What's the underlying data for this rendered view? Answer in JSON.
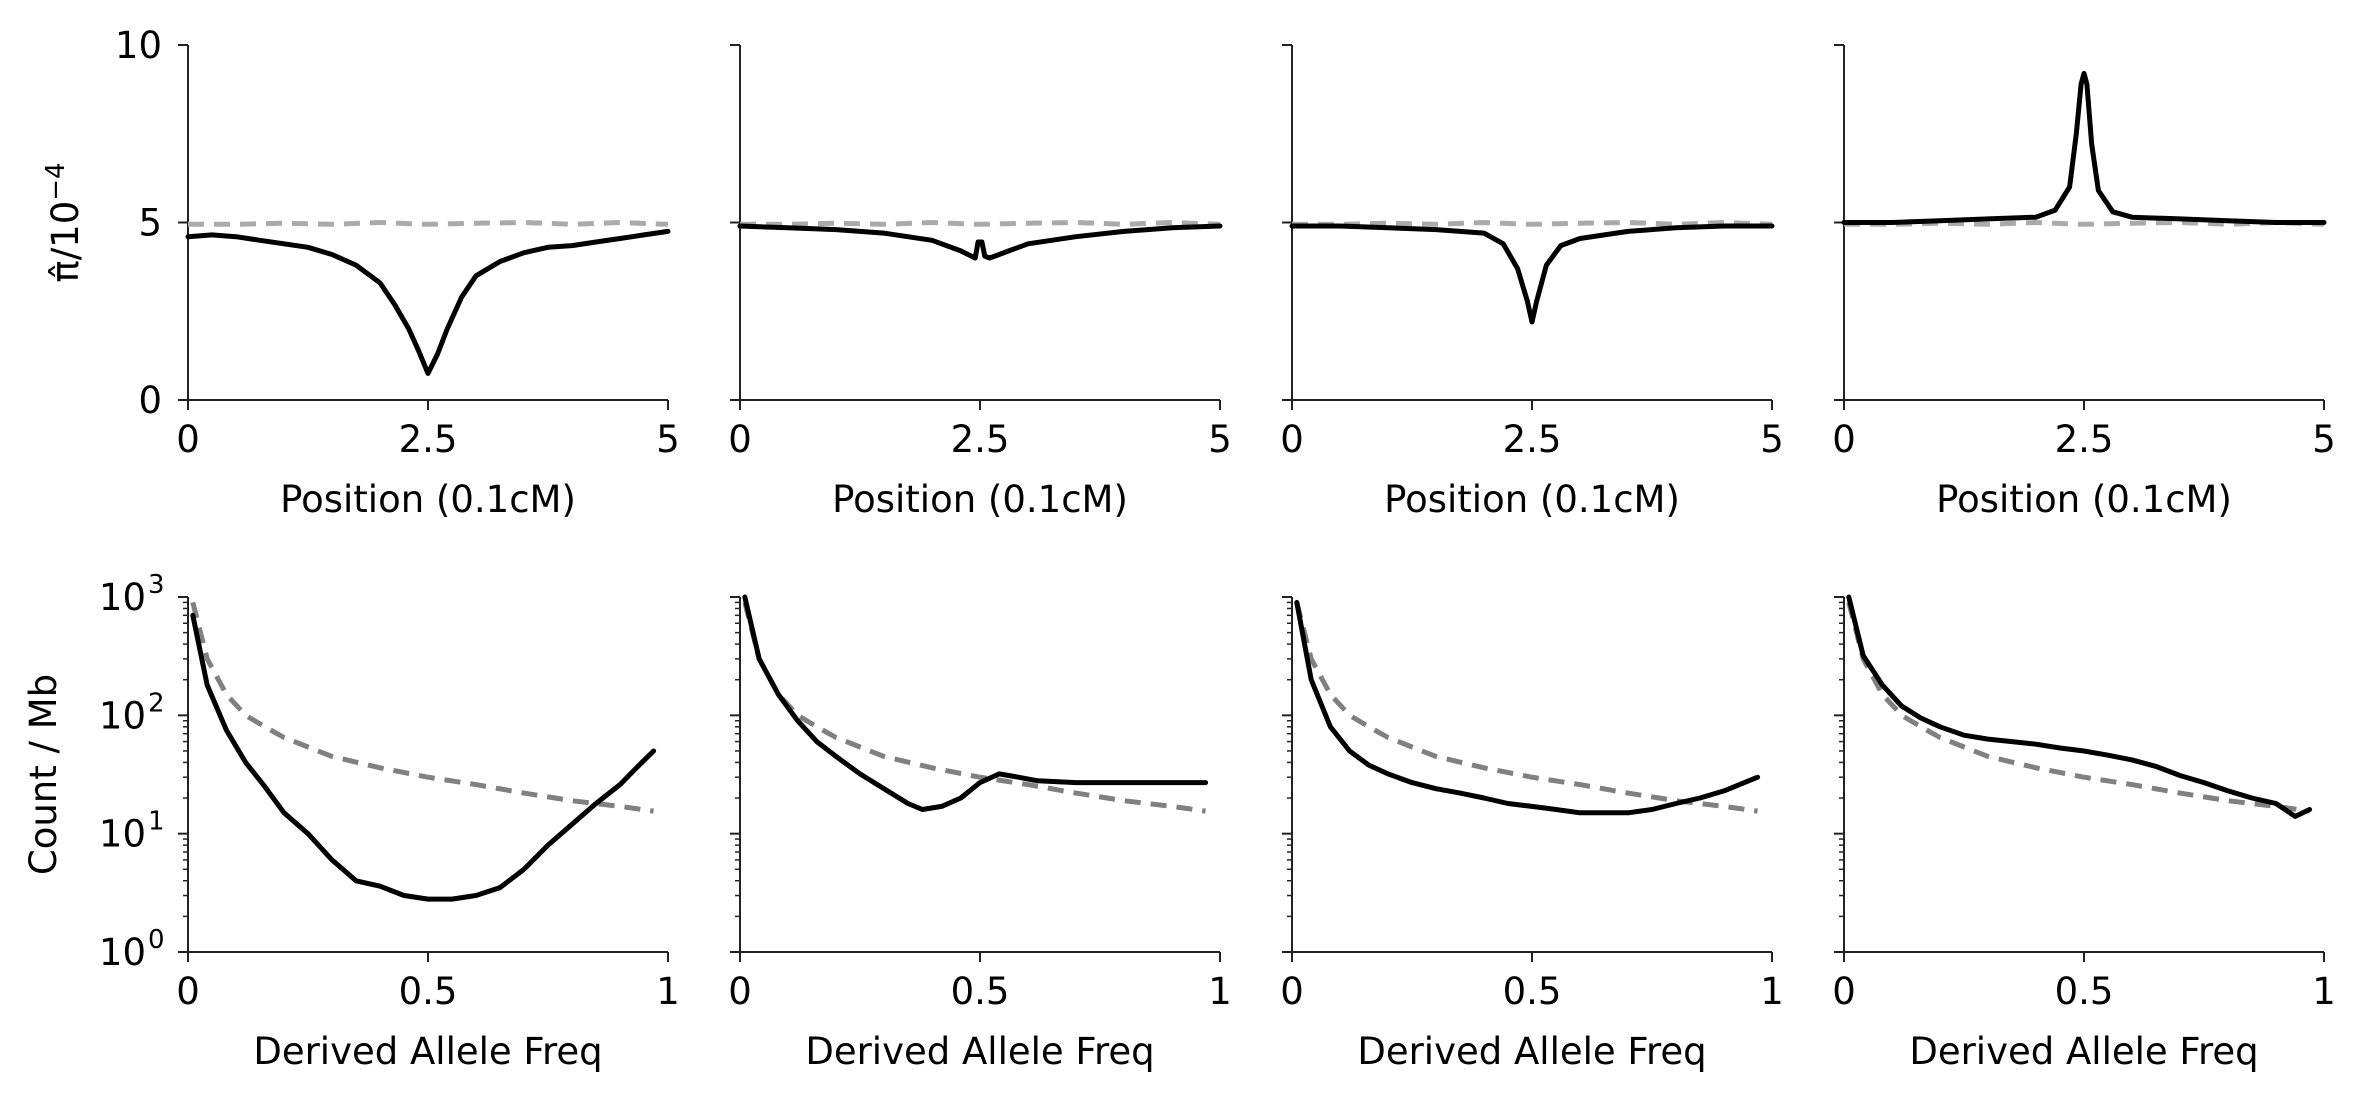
{
  "figure": {
    "top_ylabel": "π̂/10",
    "top_ylabel_exp": "−4",
    "bottom_ylabel": "Count / Mb"
  },
  "chart_data": [
    {
      "type": "line",
      "panel": "top-1",
      "xlabel": "Position (0.1cM)",
      "xlim": [
        0,
        5
      ],
      "ylim": [
        0,
        10
      ],
      "xticks": [
        "0",
        "2.5",
        "5"
      ],
      "yticks": [
        "0",
        "5",
        "10"
      ],
      "series": [
        {
          "style": "solid",
          "color": "#000000",
          "x": [
            0,
            0.25,
            0.5,
            0.75,
            1.0,
            1.25,
            1.5,
            1.75,
            2.0,
            2.15,
            2.3,
            2.4,
            2.5,
            2.6,
            2.7,
            2.85,
            3.0,
            3.25,
            3.5,
            3.75,
            4.0,
            4.25,
            4.5,
            4.75,
            5.0
          ],
          "y": [
            4.6,
            4.65,
            4.6,
            4.5,
            4.4,
            4.3,
            4.1,
            3.8,
            3.3,
            2.7,
            2.0,
            1.4,
            0.75,
            1.3,
            2.0,
            2.9,
            3.5,
            3.9,
            4.15,
            4.3,
            4.35,
            4.45,
            4.55,
            4.65,
            4.75
          ]
        },
        {
          "style": "dashed",
          "color": "#aaaaaa",
          "x": [
            0,
            0.5,
            1.0,
            1.5,
            2.0,
            2.5,
            3.0,
            3.5,
            4.0,
            4.5,
            5.0
          ],
          "y": [
            4.95,
            4.95,
            4.98,
            4.95,
            5.0,
            4.95,
            4.98,
            5.0,
            4.95,
            5.0,
            4.95
          ]
        }
      ]
    },
    {
      "type": "line",
      "panel": "top-2",
      "xlabel": "Position (0.1cM)",
      "xlim": [
        0,
        5
      ],
      "ylim": [
        0,
        10
      ],
      "xticks": [
        "0",
        "2.5",
        "5"
      ],
      "yticks": [],
      "series": [
        {
          "style": "solid",
          "color": "#000000",
          "x": [
            0,
            0.5,
            1.0,
            1.5,
            2.0,
            2.3,
            2.45,
            2.48,
            2.52,
            2.55,
            2.6,
            2.7,
            2.8,
            3.0,
            3.5,
            4.0,
            4.5,
            5.0
          ],
          "y": [
            4.9,
            4.85,
            4.8,
            4.7,
            4.5,
            4.2,
            4.0,
            4.45,
            4.45,
            4.05,
            4.0,
            4.1,
            4.2,
            4.4,
            4.6,
            4.75,
            4.85,
            4.9
          ]
        },
        {
          "style": "dashed",
          "color": "#aaaaaa",
          "x": [
            0,
            0.5,
            1.0,
            1.5,
            2.0,
            2.5,
            3.0,
            3.5,
            4.0,
            4.5,
            5.0
          ],
          "y": [
            4.95,
            4.95,
            4.98,
            4.95,
            5.0,
            4.95,
            4.98,
            5.0,
            4.95,
            5.0,
            4.95
          ]
        }
      ]
    },
    {
      "type": "line",
      "panel": "top-3",
      "xlabel": "Position (0.1cM)",
      "xlim": [
        0,
        5
      ],
      "ylim": [
        0,
        10
      ],
      "xticks": [
        "0",
        "2.5",
        "5"
      ],
      "yticks": [],
      "series": [
        {
          "style": "solid",
          "color": "#000000",
          "x": [
            0,
            0.5,
            1.0,
            1.5,
            2.0,
            2.2,
            2.35,
            2.45,
            2.5,
            2.55,
            2.65,
            2.8,
            3.0,
            3.5,
            4.0,
            4.5,
            5.0
          ],
          "y": [
            4.9,
            4.9,
            4.85,
            4.8,
            4.7,
            4.4,
            3.7,
            2.8,
            2.2,
            2.8,
            3.8,
            4.35,
            4.55,
            4.75,
            4.85,
            4.9,
            4.9
          ]
        },
        {
          "style": "dashed",
          "color": "#aaaaaa",
          "x": [
            0,
            0.5,
            1.0,
            1.5,
            2.0,
            2.5,
            3.0,
            3.5,
            4.0,
            4.5,
            5.0
          ],
          "y": [
            4.95,
            4.95,
            4.98,
            4.95,
            5.0,
            4.95,
            4.98,
            5.0,
            4.95,
            5.0,
            4.95
          ]
        }
      ]
    },
    {
      "type": "line",
      "panel": "top-4",
      "xlabel": "Position (0.1cM)",
      "xlim": [
        0,
        5
      ],
      "ylim": [
        0,
        10
      ],
      "xticks": [
        "0",
        "2.5",
        "5"
      ],
      "yticks": [],
      "series": [
        {
          "style": "solid",
          "color": "#000000",
          "x": [
            0,
            0.5,
            1.0,
            1.5,
            2.0,
            2.2,
            2.35,
            2.42,
            2.47,
            2.5,
            2.53,
            2.58,
            2.65,
            2.8,
            3.0,
            3.5,
            4.0,
            4.5,
            5.0
          ],
          "y": [
            5.0,
            5.0,
            5.05,
            5.1,
            5.15,
            5.35,
            6.0,
            7.5,
            8.9,
            9.2,
            8.9,
            7.2,
            5.9,
            5.3,
            5.15,
            5.1,
            5.05,
            5.0,
            5.0
          ]
        },
        {
          "style": "dashed",
          "color": "#aaaaaa",
          "x": [
            0,
            0.5,
            1.0,
            1.5,
            2.0,
            2.5,
            3.0,
            3.5,
            4.0,
            4.5,
            5.0
          ],
          "y": [
            4.95,
            4.95,
            4.98,
            4.95,
            5.0,
            4.95,
            4.98,
            5.0,
            4.95,
            5.0,
            4.95
          ]
        }
      ]
    },
    {
      "type": "line",
      "panel": "bottom-1",
      "scale": "log",
      "xlabel": "Derived Allele Freq",
      "xlim": [
        0,
        1
      ],
      "ylim": [
        1,
        1000
      ],
      "xticks": [
        "0",
        "0.5",
        "1"
      ],
      "yticks_exp": [
        "0",
        "1",
        "2",
        "3"
      ],
      "series": [
        {
          "style": "solid",
          "color": "#000000",
          "x": [
            0.01,
            0.04,
            0.08,
            0.12,
            0.16,
            0.2,
            0.25,
            0.3,
            0.35,
            0.4,
            0.45,
            0.5,
            0.55,
            0.6,
            0.65,
            0.7,
            0.75,
            0.8,
            0.85,
            0.9,
            0.94,
            0.97
          ],
          "y": [
            700,
            180,
            75,
            40,
            25,
            15,
            10,
            6,
            4,
            3.6,
            3,
            2.8,
            2.8,
            3,
            3.5,
            5,
            8,
            12,
            18,
            26,
            38,
            50
          ]
        },
        {
          "style": "dashed",
          "color": "#808080",
          "x": [
            0.01,
            0.04,
            0.08,
            0.12,
            0.16,
            0.2,
            0.3,
            0.4,
            0.5,
            0.6,
            0.7,
            0.8,
            0.9,
            0.97
          ],
          "y": [
            900,
            300,
            150,
            100,
            80,
            65,
            45,
            36,
            30,
            26,
            22,
            19,
            17,
            15.5
          ]
        }
      ]
    },
    {
      "type": "line",
      "panel": "bottom-2",
      "scale": "log",
      "xlabel": "Derived Allele Freq",
      "xlim": [
        0,
        1
      ],
      "ylim": [
        1,
        1000
      ],
      "xticks": [
        "0",
        "0.5",
        "1"
      ],
      "yticks_exp": [],
      "series": [
        {
          "style": "solid",
          "color": "#000000",
          "x": [
            0.01,
            0.04,
            0.08,
            0.12,
            0.16,
            0.2,
            0.25,
            0.3,
            0.35,
            0.38,
            0.42,
            0.46,
            0.5,
            0.54,
            0.58,
            0.62,
            0.7,
            0.8,
            0.9,
            0.97
          ],
          "y": [
            1000,
            300,
            150,
            90,
            60,
            45,
            32,
            24,
            18,
            16,
            17,
            20,
            27,
            32,
            30,
            28,
            27,
            27,
            27,
            27
          ]
        },
        {
          "style": "dashed",
          "color": "#808080",
          "x": [
            0.01,
            0.04,
            0.08,
            0.12,
            0.16,
            0.2,
            0.3,
            0.4,
            0.5,
            0.6,
            0.7,
            0.8,
            0.9,
            0.97
          ],
          "y": [
            900,
            300,
            150,
            100,
            80,
            65,
            45,
            36,
            30,
            26,
            22,
            19,
            17,
            15.5
          ]
        }
      ]
    },
    {
      "type": "line",
      "panel": "bottom-3",
      "scale": "log",
      "xlabel": "Derived Allele Freq",
      "xlim": [
        0,
        1
      ],
      "ylim": [
        1,
        1000
      ],
      "xticks": [
        "0",
        "0.5",
        "1"
      ],
      "yticks_exp": [],
      "series": [
        {
          "style": "solid",
          "color": "#000000",
          "x": [
            0.01,
            0.04,
            0.08,
            0.12,
            0.16,
            0.2,
            0.25,
            0.3,
            0.35,
            0.4,
            0.45,
            0.5,
            0.55,
            0.6,
            0.65,
            0.7,
            0.75,
            0.8,
            0.85,
            0.9,
            0.97
          ],
          "y": [
            900,
            200,
            80,
            50,
            38,
            32,
            27,
            24,
            22,
            20,
            18,
            17,
            16,
            15,
            15,
            15,
            16,
            18,
            20,
            23,
            30
          ]
        },
        {
          "style": "dashed",
          "color": "#808080",
          "x": [
            0.01,
            0.04,
            0.08,
            0.12,
            0.16,
            0.2,
            0.3,
            0.4,
            0.5,
            0.6,
            0.7,
            0.8,
            0.9,
            0.97
          ],
          "y": [
            900,
            300,
            150,
            100,
            80,
            65,
            45,
            36,
            30,
            26,
            22,
            19,
            17,
            15.5
          ]
        }
      ]
    },
    {
      "type": "line",
      "panel": "bottom-4",
      "scale": "log",
      "xlabel": "Derived Allele Freq",
      "xlim": [
        0,
        1
      ],
      "ylim": [
        1,
        1000
      ],
      "xticks": [
        "0",
        "0.5",
        "1"
      ],
      "yticks_exp": [],
      "series": [
        {
          "style": "solid",
          "color": "#000000",
          "x": [
            0.01,
            0.04,
            0.08,
            0.12,
            0.16,
            0.2,
            0.25,
            0.3,
            0.35,
            0.4,
            0.45,
            0.5,
            0.55,
            0.6,
            0.65,
            0.7,
            0.75,
            0.8,
            0.85,
            0.9,
            0.94,
            0.97
          ],
          "y": [
            1000,
            320,
            180,
            120,
            95,
            80,
            68,
            63,
            60,
            57,
            53,
            50,
            46,
            42,
            37,
            31,
            27,
            23,
            20,
            18,
            14,
            16
          ]
        },
        {
          "style": "dashed",
          "color": "#808080",
          "x": [
            0.01,
            0.04,
            0.08,
            0.12,
            0.16,
            0.2,
            0.3,
            0.4,
            0.5,
            0.6,
            0.7,
            0.8,
            0.9,
            0.97
          ],
          "y": [
            900,
            300,
            150,
            100,
            80,
            65,
            45,
            36,
            30,
            26,
            22,
            19,
            17,
            15.5
          ]
        }
      ]
    }
  ]
}
